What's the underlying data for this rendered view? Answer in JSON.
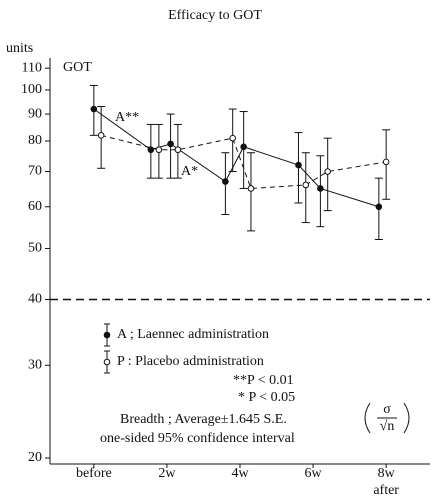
{
  "chart_data": {
    "type": "line",
    "title": "Efficacy to GOT",
    "y_unit_label": "units",
    "panel_label": "GOT",
    "x_sublabel": "after",
    "log_y": true,
    "ylim": [
      20,
      114
    ],
    "yticks": [
      20,
      30,
      40,
      50,
      60,
      70,
      80,
      90,
      100,
      110
    ],
    "xlim": [
      -1.2,
      9.2
    ],
    "xticks": [
      {
        "value": 0,
        "label": "before"
      },
      {
        "value": 2,
        "label": "2w"
      },
      {
        "value": 4,
        "label": "4w"
      },
      {
        "value": 6,
        "label": "6w"
      },
      {
        "value": 8,
        "label": "8w"
      }
    ],
    "reference_line": 40,
    "series": [
      {
        "name": "A ; Laennec administration",
        "color": "#111111",
        "marker": "filled",
        "dash": false,
        "x": [
          0,
          1.56,
          2.1,
          3.6,
          4.1,
          5.6,
          6.2,
          7.8
        ],
        "values": [
          92,
          77,
          79,
          67,
          78,
          72,
          65,
          60
        ],
        "errors": [
          10,
          9,
          11,
          9,
          13,
          11,
          10,
          8
        ]
      },
      {
        "name": "P : Placebo administration",
        "color": "#111111",
        "marker": "open",
        "dash": true,
        "x": [
          0.2,
          1.78,
          2.3,
          3.8,
          4.3,
          5.8,
          6.4,
          8.0
        ],
        "values": [
          82,
          77,
          77,
          81,
          65,
          66,
          70,
          73
        ],
        "errors": [
          11,
          9,
          9,
          11,
          11,
          10,
          11,
          11
        ]
      }
    ],
    "annotations": [
      "A**",
      "A*"
    ],
    "notes": [
      "**P < 0.01",
      "* P < 0.05",
      "Breadth ; Average±1.645  S.E.",
      "one-sided 95% confidence interval"
    ],
    "formula": {
      "numerator": "σ",
      "denominator": "√n"
    }
  }
}
